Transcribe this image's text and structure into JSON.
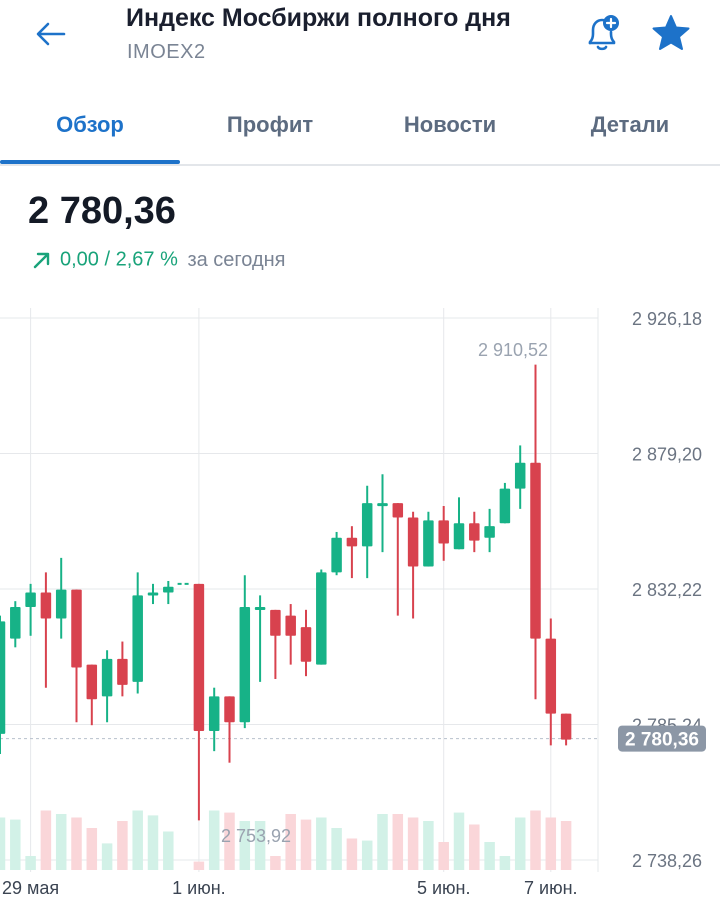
{
  "header": {
    "title": "Индекс Мосбиржи полного дня",
    "ticker": "IMOEX2",
    "icons": {
      "back": "arrow-left-icon",
      "alert": "bell-plus-icon",
      "favorite": "star-icon"
    },
    "accent_color": "#1d72c9"
  },
  "tabs": [
    {
      "label": "Обзор",
      "active": true
    },
    {
      "label": "Профит",
      "active": false
    },
    {
      "label": "Новости",
      "active": false
    },
    {
      "label": "Детали",
      "active": false
    }
  ],
  "quote": {
    "price": "2 780,36",
    "change_abs": "0,00",
    "separator": "/",
    "change_pct": "2,67 %",
    "period": "за сегодня",
    "change_color": "#19a37a"
  },
  "chart_data": {
    "type": "candlestick",
    "y_ticks": [
      "2 926,18",
      "2 879,20",
      "2 832,22",
      "2 785,24",
      "2 738,26"
    ],
    "x_ticks": [
      "29 мая",
      "1 июн.",
      "5 июн.",
      "7 июн."
    ],
    "ylim": [
      2738.26,
      2926.18
    ],
    "last_price_label": "2 780,36",
    "last_price": 2780.36,
    "high_label": "2 910,52",
    "high": 2910.52,
    "low_label": "2 753,92",
    "low": 2753.92,
    "colors": {
      "up": "#17b287",
      "down": "#d8424e",
      "up_volume": "#d2f1e7",
      "down_volume": "#fad6d9"
    },
    "candles": [
      {
        "o": 2782,
        "c": 2821,
        "h": 2823,
        "l": 2775,
        "v": 0.75
      },
      {
        "o": 2815,
        "c": 2826,
        "h": 2828,
        "l": 2812,
        "v": 0.72
      },
      {
        "o": 2826,
        "c": 2831,
        "h": 2834,
        "l": 2816,
        "v": 0.2
      },
      {
        "o": 2831,
        "c": 2822,
        "h": 2838,
        "l": 2798,
        "v": 0.85
      },
      {
        "o": 2822,
        "c": 2832,
        "h": 2843,
        "l": 2815,
        "v": 0.8
      },
      {
        "o": 2832,
        "c": 2805,
        "h": 2832,
        "l": 2786,
        "v": 0.75
      },
      {
        "o": 2806,
        "c": 2794,
        "h": 2806,
        "l": 2785,
        "v": 0.6
      },
      {
        "o": 2795,
        "c": 2808,
        "h": 2811,
        "l": 2786,
        "v": 0.38
      },
      {
        "o": 2808,
        "c": 2799,
        "h": 2814,
        "l": 2795,
        "v": 0.7
      },
      {
        "o": 2800,
        "c": 2830,
        "h": 2838,
        "l": 2796,
        "v": 0.85
      },
      {
        "o": 2830,
        "c": 2831,
        "h": 2834,
        "l": 2827,
        "v": 0.78
      },
      {
        "o": 2831,
        "c": 2833,
        "h": 2835,
        "l": 2827,
        "v": 0.55
      },
      {
        "o": 2834,
        "c": 2834,
        "h": 2834,
        "l": 2834,
        "v": 0.0
      },
      {
        "o": 2834,
        "c": 2783,
        "h": 2834,
        "l": 2752,
        "v": 0.12
      },
      {
        "o": 2783,
        "c": 2795,
        "h": 2798,
        "l": 2776,
        "v": 0.85
      },
      {
        "o": 2795,
        "c": 2786,
        "h": 2795,
        "l": 2772,
        "v": 0.82
      },
      {
        "o": 2786,
        "c": 2826,
        "h": 2837,
        "l": 2784,
        "v": 0.7
      },
      {
        "o": 2826,
        "c": 2826,
        "h": 2830,
        "l": 2800,
        "v": 0.7
      },
      {
        "o": 2825,
        "c": 2816,
        "h": 2825,
        "l": 2801,
        "v": 0.2
      },
      {
        "o": 2823,
        "c": 2816,
        "h": 2827,
        "l": 2806,
        "v": 0.8
      },
      {
        "o": 2819,
        "c": 2807,
        "h": 2825,
        "l": 2802,
        "v": 0.72
      },
      {
        "o": 2806,
        "c": 2838,
        "h": 2839,
        "l": 2806,
        "v": 0.75
      },
      {
        "o": 2838,
        "c": 2850,
        "h": 2852,
        "l": 2837,
        "v": 0.6
      },
      {
        "o": 2850,
        "c": 2847,
        "h": 2854,
        "l": 2836,
        "v": 0.45
      },
      {
        "o": 2847,
        "c": 2862,
        "h": 2868,
        "l": 2836,
        "v": 0.42
      },
      {
        "o": 2862,
        "c": 2862,
        "h": 2872,
        "l": 2845,
        "v": 0.8
      },
      {
        "o": 2862,
        "c": 2857,
        "h": 2862,
        "l": 2823,
        "v": 0.8
      },
      {
        "o": 2857,
        "c": 2840,
        "h": 2859,
        "l": 2822,
        "v": 0.75
      },
      {
        "o": 2840,
        "c": 2856,
        "h": 2859,
        "l": 2840,
        "v": 0.7
      },
      {
        "o": 2856,
        "c": 2848,
        "h": 2861,
        "l": 2842,
        "v": 0.4
      },
      {
        "o": 2846,
        "c": 2855,
        "h": 2864,
        "l": 2846,
        "v": 0.82
      },
      {
        "o": 2855,
        "c": 2849,
        "h": 2859,
        "l": 2845,
        "v": 0.65
      },
      {
        "o": 2850,
        "c": 2854,
        "h": 2860,
        "l": 2845,
        "v": 0.4
      },
      {
        "o": 2855,
        "c": 2867,
        "h": 2869,
        "l": 2855,
        "v": 0.2
      },
      {
        "o": 2867,
        "c": 2876,
        "h": 2882,
        "l": 2860,
        "v": 0.75
      },
      {
        "o": 2876,
        "c": 2815,
        "h": 2910,
        "l": 2794,
        "v": 0.85
      },
      {
        "o": 2815,
        "c": 2789,
        "h": 2822,
        "l": 2778,
        "v": 0.75
      },
      {
        "o": 2789,
        "c": 2780,
        "h": 2789,
        "l": 2778,
        "v": 0.7
      }
    ]
  }
}
